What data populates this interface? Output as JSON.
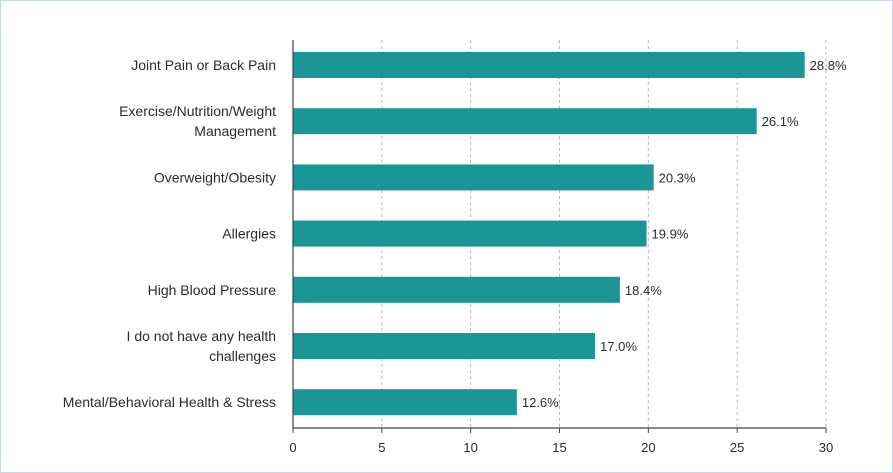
{
  "chart_data": {
    "type": "bar",
    "orientation": "horizontal",
    "categories": [
      [
        "Joint Pain or Back Pain"
      ],
      [
        "Exercise/Nutrition/Weight",
        "Management"
      ],
      [
        "Overweight/Obesity"
      ],
      [
        "Allergies"
      ],
      [
        "High Blood Pressure"
      ],
      [
        "I do not have any health",
        "challenges"
      ],
      [
        "Mental/Behavioral Health & Stress"
      ]
    ],
    "values": [
      28.8,
      26.1,
      20.3,
      19.9,
      18.4,
      17.0,
      12.6
    ],
    "data_labels": [
      "28.8%",
      "26.1%",
      "20.3%",
      "19.9%",
      "18.4%",
      "17.0%",
      "12.6%"
    ],
    "xticks": [
      "0",
      "5",
      "10",
      "15",
      "20",
      "25",
      "30"
    ],
    "xlim": [
      0,
      30
    ],
    "grid": "vertical-dashed",
    "bar_color": "#1a9696",
    "axis_color": "#444444",
    "grid_color": "#b8b8b8"
  }
}
